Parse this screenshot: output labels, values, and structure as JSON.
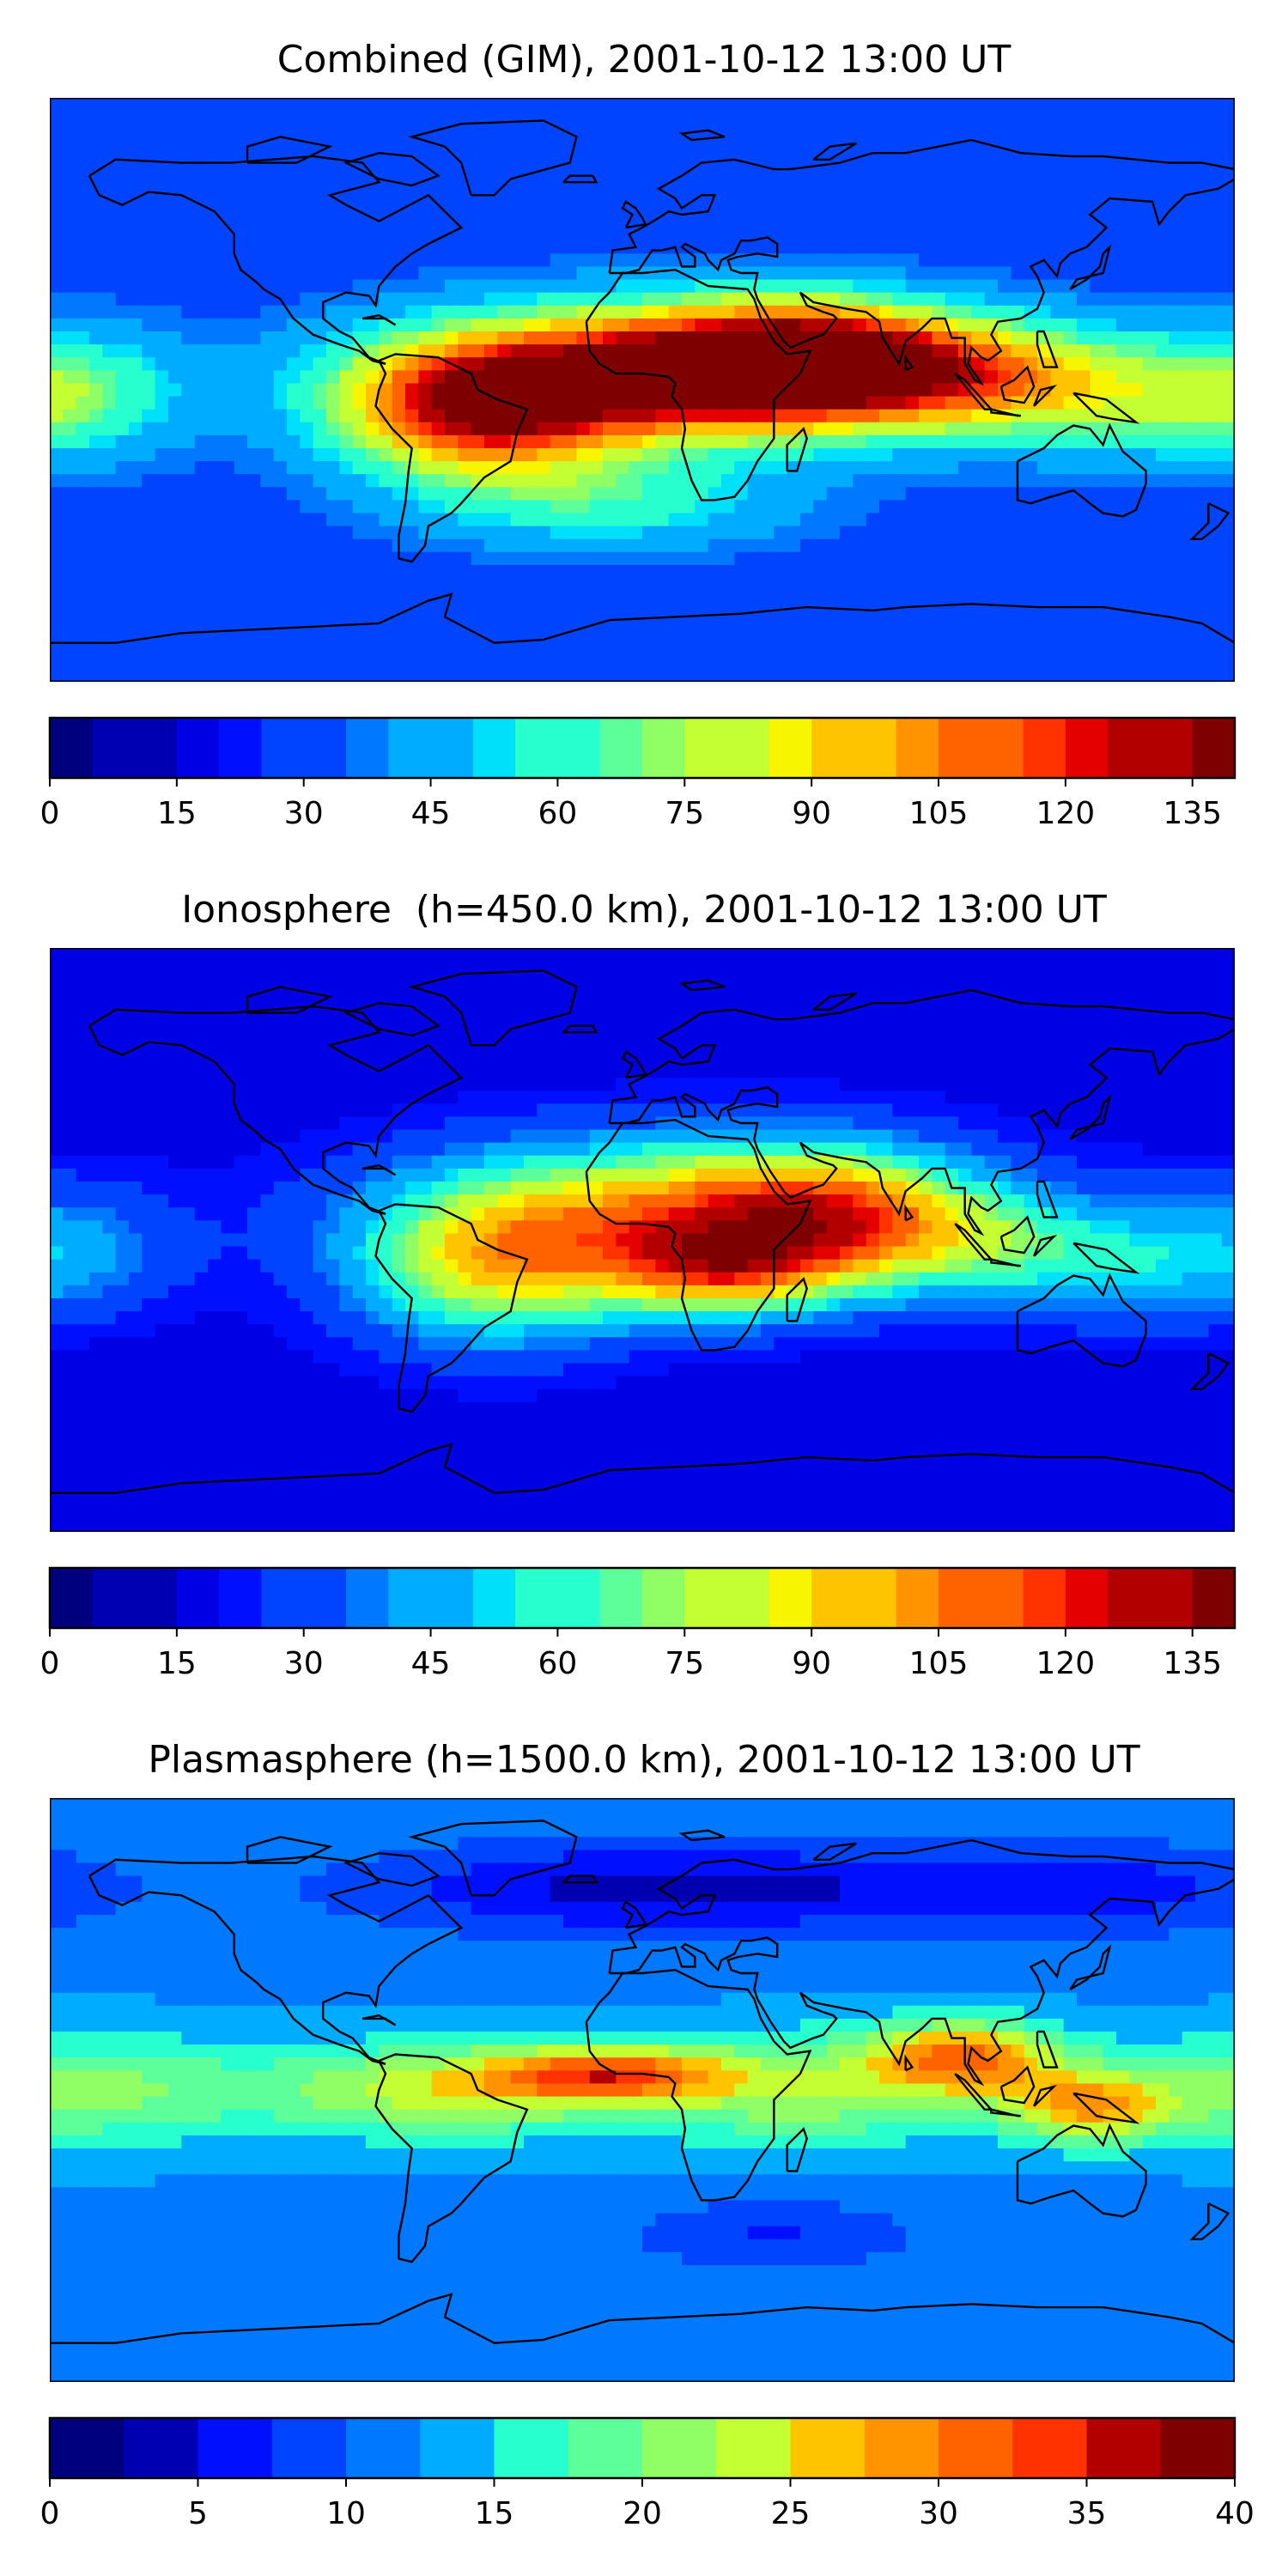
{
  "panels": [
    {
      "title": "Combined (GIM), 2001-10-12 13:00 UT",
      "colorbar": {
        "min": 0,
        "max": 140,
        "step": 5,
        "tick_labels": [
          "0",
          "15",
          "30",
          "45",
          "60",
          "75",
          "90",
          "105",
          "120",
          "135"
        ],
        "tick_values": [
          0,
          15,
          30,
          45,
          60,
          75,
          90,
          105,
          120,
          135
        ]
      },
      "field": {
        "background": 0.22,
        "blobs": [
          {
            "lon": 8,
            "lat": 5,
            "amp": 0.78,
            "sx": 55,
            "sy": 14
          },
          {
            "lon": -50,
            "lat": -8,
            "amp": 0.55,
            "sx": 30,
            "sy": 14
          },
          {
            "lon": 50,
            "lat": 10,
            "amp": 0.5,
            "sx": 30,
            "sy": 12
          },
          {
            "lon": 100,
            "lat": 5,
            "amp": 0.35,
            "sx": 35,
            "sy": 12
          },
          {
            "lon": 150,
            "lat": -5,
            "amp": 0.18,
            "sx": 35,
            "sy": 12
          },
          {
            "lon": -175,
            "lat": 0,
            "amp": 0.22,
            "sx": 25,
            "sy": 14
          },
          {
            "lon": -10,
            "lat": -35,
            "amp": 0.2,
            "sx": 40,
            "sy": 10
          }
        ]
      }
    },
    {
      "title": "Ionosphere  (h=450.0 km), 2001-10-12 13:00 UT",
      "colorbar": {
        "min": 0,
        "max": 140,
        "step": 5,
        "tick_labels": [
          "0",
          "15",
          "30",
          "45",
          "60",
          "75",
          "90",
          "105",
          "120",
          "135"
        ],
        "tick_values": [
          0,
          15,
          30,
          45,
          60,
          75,
          90,
          105,
          120,
          135
        ]
      },
      "field": {
        "background": 0.12,
        "blobs": [
          {
            "lon": 8,
            "lat": 8,
            "amp": 0.52,
            "sx": 55,
            "sy": 16
          },
          {
            "lon": -45,
            "lat": -10,
            "amp": 0.4,
            "sx": 30,
            "sy": 16
          },
          {
            "lon": 25,
            "lat": -10,
            "amp": 0.42,
            "sx": 25,
            "sy": 10
          },
          {
            "lon": 55,
            "lat": 10,
            "amp": 0.35,
            "sx": 30,
            "sy": 14
          },
          {
            "lon": 100,
            "lat": 0,
            "amp": 0.25,
            "sx": 35,
            "sy": 12
          },
          {
            "lon": 150,
            "lat": -10,
            "amp": 0.15,
            "sx": 35,
            "sy": 12
          },
          {
            "lon": -175,
            "lat": 0,
            "amp": 0.14,
            "sx": 25,
            "sy": 14
          }
        ]
      }
    },
    {
      "title": "Plasmasphere (h=1500.0 km), 2001-10-12 13:00 UT",
      "colorbar": {
        "min": 0,
        "max": 40,
        "step": 2.5,
        "tick_labels": [
          "0",
          "5",
          "10",
          "15",
          "20",
          "25",
          "30",
          "35",
          "40"
        ],
        "tick_values": [
          0,
          5,
          10,
          15,
          20,
          25,
          30,
          35,
          40
        ]
      },
      "field": {
        "background": 0.3,
        "blobs": [
          {
            "lon": -10,
            "lat": 5,
            "amp": 0.4,
            "sx": 25,
            "sy": 6
          },
          {
            "lon": 98,
            "lat": 10,
            "amp": 0.42,
            "sx": 20,
            "sy": 8
          },
          {
            "lon": 135,
            "lat": -5,
            "amp": 0.35,
            "sx": 18,
            "sy": 8
          },
          {
            "lon": -60,
            "lat": 0,
            "amp": 0.3,
            "sx": 40,
            "sy": 10
          },
          {
            "lon": 50,
            "lat": 0,
            "amp": 0.25,
            "sx": 35,
            "sy": 12
          },
          {
            "lon": -170,
            "lat": 0,
            "amp": 0.22,
            "sx": 35,
            "sy": 12
          },
          {
            "lon": 0,
            "lat": 62,
            "amp": -0.2,
            "sx": 60,
            "sy": 10
          },
          {
            "lon": 130,
            "lat": 62,
            "amp": -0.15,
            "sx": 50,
            "sy": 10
          },
          {
            "lon": 40,
            "lat": -45,
            "amp": -0.12,
            "sx": 30,
            "sy": 8
          }
        ]
      }
    }
  ],
  "colors": {
    "palette": [
      "#00007f",
      "#0000b2",
      "#0000e5",
      "#0010ff",
      "#0044ff",
      "#0078ff",
      "#00acff",
      "#00e0fa",
      "#28ffce",
      "#5cff9a",
      "#90ff66",
      "#c4ff33",
      "#f8f500",
      "#ffc400",
      "#ff9400",
      "#ff6300",
      "#ff3200",
      "#e50000",
      "#b20000",
      "#7f0000"
    ],
    "coastline": "#000000"
  },
  "icons": {
    "continent_outline": "coastline"
  }
}
